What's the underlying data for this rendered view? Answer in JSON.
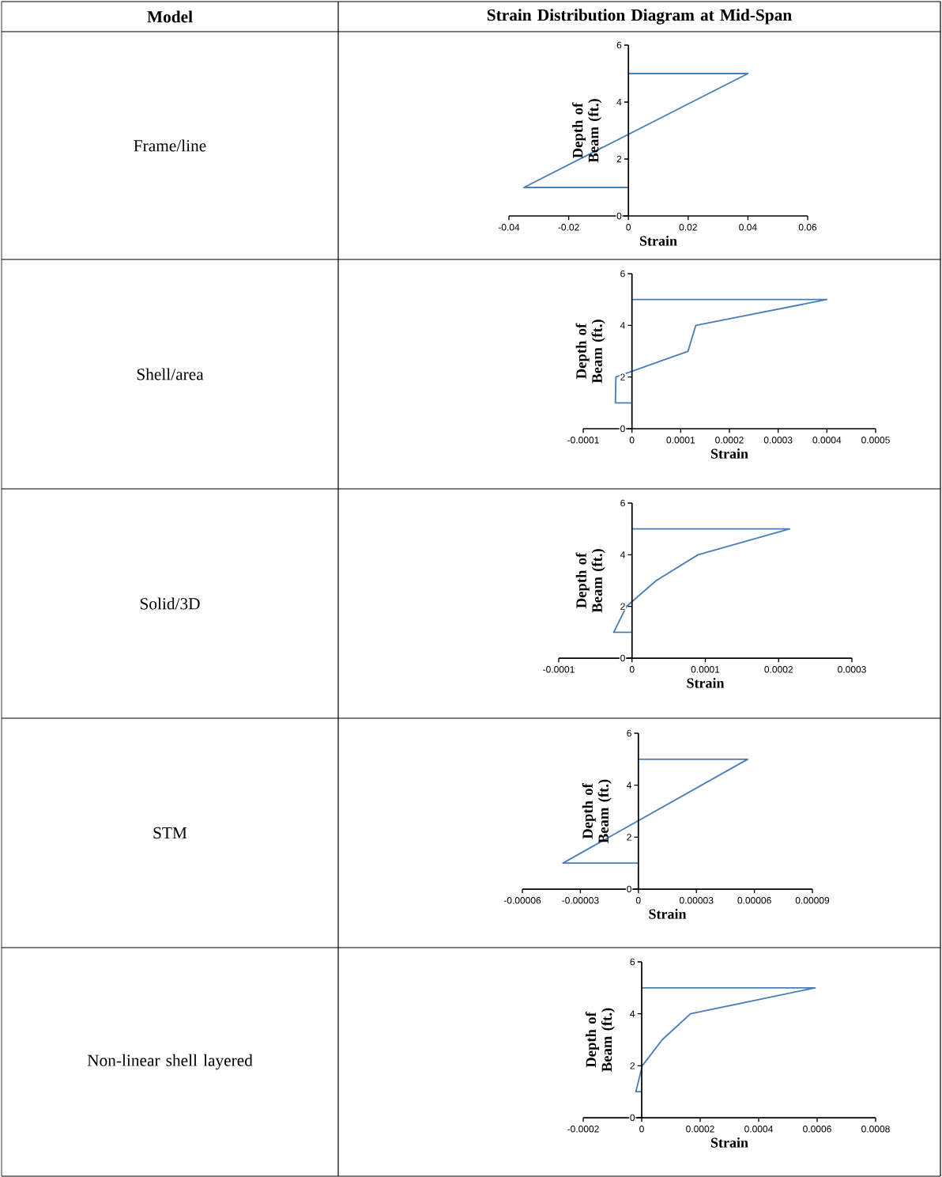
{
  "chart_data": [
    {
      "type": "other",
      "annotations": [
        "Model",
        "Strain Distribution Diagram at Mid-Span",
        "Frame/line",
        "Shell/area",
        "Solid/3D",
        "STM",
        "Non-linear shell layered"
      ]
    },
    {
      "type": "line",
      "xlabel": "Strain",
      "ylabel": "Depth of Beam (ft.)",
      "color": "#4a7ebb",
      "x": [
        0,
        -0.035,
        0.04,
        0
      ],
      "values": [
        1,
        1,
        5,
        5
      ],
      "xlim": [
        -0.04,
        0.06
      ],
      "xticks": [
        -0.04,
        -0.02,
        0,
        0.02,
        0.04,
        0.06
      ],
      "ylim": [
        0,
        6
      ],
      "yticks": [
        0,
        2,
        4,
        6
      ]
    },
    {
      "type": "line",
      "xlabel": "Strain",
      "ylabel": "Depth of Beam (ft.)",
      "color": "#4a7ebb",
      "x": [
        0,
        -3.4e-05,
        -3.3e-05,
        0.000115,
        0.000131,
        0.0004,
        0
      ],
      "values": [
        1,
        1,
        2,
        3,
        4,
        5,
        5
      ],
      "xlim": [
        -0.0001,
        0.0005
      ],
      "xticks": [
        -0.0001,
        0,
        0.0001,
        0.0002,
        0.0003,
        0.0004,
        0.0005
      ],
      "ylim": [
        0,
        6
      ],
      "yticks": [
        0,
        2,
        4,
        6
      ]
    },
    {
      "type": "line",
      "xlabel": "Strain",
      "ylabel": "Depth of Beam (ft.)",
      "color": "#4a7ebb",
      "x": [
        0,
        -2.5e-05,
        -7.5e-06,
        3.3e-05,
        9e-05,
        0.000215,
        0
      ],
      "values": [
        1,
        1,
        2,
        3,
        4,
        5,
        5
      ],
      "xlim": [
        -0.0001,
        0.0003
      ],
      "xticks": [
        -0.0001,
        0,
        0.0001,
        0.0002,
        0.0003
      ],
      "ylim": [
        0,
        6
      ],
      "yticks": [
        0,
        2,
        4,
        6
      ]
    },
    {
      "type": "line",
      "xlabel": "Strain",
      "ylabel": "Depth of Beam (ft.)",
      "color": "#4a7ebb",
      "x": [
        0,
        -3.9e-05,
        5.65e-05,
        0
      ],
      "values": [
        1,
        1,
        5,
        5
      ],
      "xlim": [
        -6e-05,
        9e-05
      ],
      "xticks": [
        {
          "value": -6e-05,
          "label": "-0.00006"
        },
        {
          "value": -3e-05,
          "label": "-0.00003"
        },
        0,
        {
          "value": 3e-05,
          "label": "0.00003"
        },
        {
          "value": 6e-05,
          "label": "0.00006"
        },
        {
          "value": 9e-05,
          "label": "0.00009"
        }
      ],
      "ylim": [
        0,
        6
      ],
      "yticks": [
        0,
        2,
        4,
        6
      ]
    },
    {
      "type": "line",
      "xlabel": "Strain",
      "ylabel": "Depth of Beam (ft.)",
      "color": "#4a7ebb",
      "x": [
        0,
        -2e-05,
        2e-06,
        7e-05,
        0.000167,
        0.000593,
        0
      ],
      "values": [
        1,
        1,
        2,
        3,
        4,
        5,
        5
      ],
      "xlim": [
        -0.0002,
        0.0008
      ],
      "xticks": [
        -0.0002,
        0,
        0.0002,
        0.0004,
        0.0006,
        0.0008
      ],
      "ylim": [
        0,
        6
      ],
      "yticks": [
        0,
        2,
        4,
        6
      ]
    }
  ]
}
